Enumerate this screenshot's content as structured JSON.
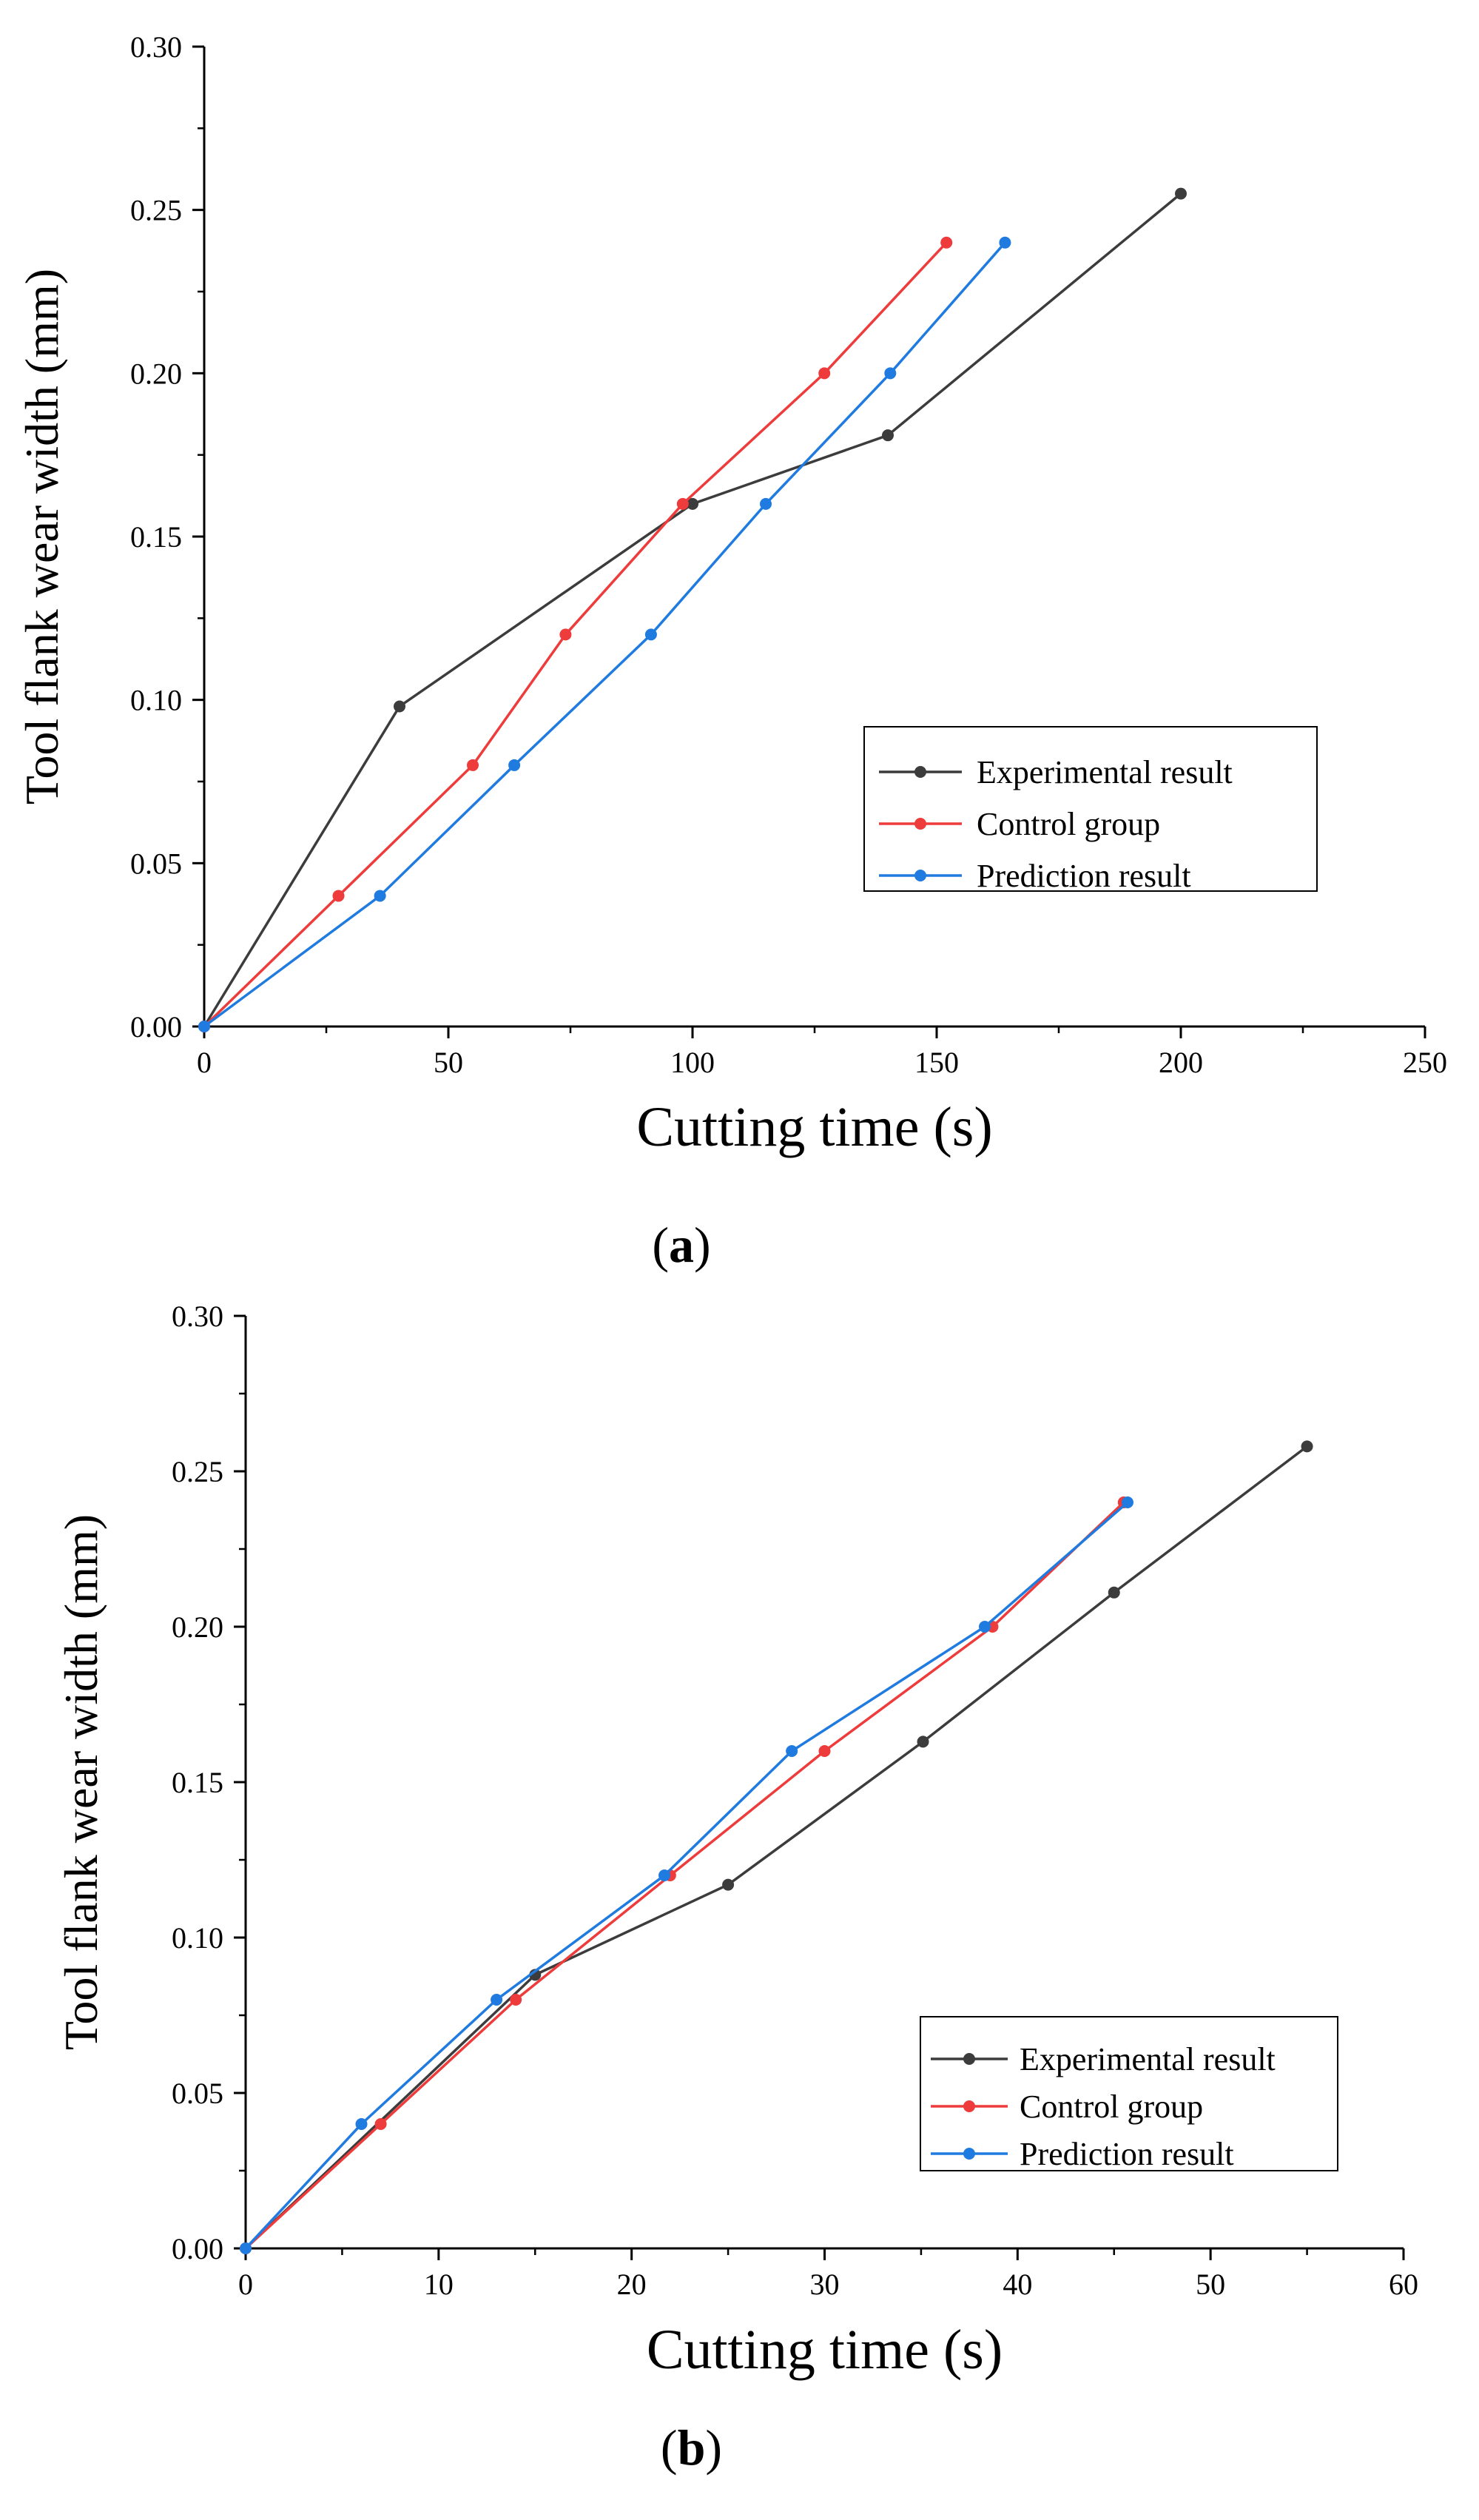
{
  "chart_data": [
    {
      "type": "line",
      "panel": "(a)",
      "caption_letter": "a",
      "xlabel": "Cutting time (s)",
      "ylabel": "Tool flank wear width (mm)",
      "xlim": [
        0,
        250
      ],
      "ylim": [
        0,
        0.3
      ],
      "xticks": [
        "0",
        "50",
        "100",
        "150",
        "200",
        "250"
      ],
      "yticks": [
        "0.00",
        "0.05",
        "0.10",
        "0.15",
        "0.20",
        "0.25",
        "0.30"
      ],
      "legend_position": "lower-right",
      "series": [
        {
          "name": "Experimental result",
          "color": "#3c3c3c",
          "x": [
            0,
            40,
            100,
            140,
            200
          ],
          "y": [
            0,
            0.098,
            0.16,
            0.181,
            0.255
          ]
        },
        {
          "name": "Control group",
          "color": "#ee3b3b",
          "x": [
            0,
            27.5,
            55,
            74,
            98,
            127,
            152
          ],
          "y": [
            0,
            0.04,
            0.08,
            0.12,
            0.16,
            0.2,
            0.24
          ]
        },
        {
          "name": "Prediction result",
          "color": "#1f7be0",
          "x": [
            0,
            36,
            63.5,
            91.5,
            115,
            140.5,
            164
          ],
          "y": [
            0,
            0.04,
            0.08,
            0.12,
            0.16,
            0.2,
            0.24
          ]
        }
      ]
    },
    {
      "type": "line",
      "panel": "(b)",
      "caption_letter": "b",
      "xlabel": "Cutting time (s)",
      "ylabel": "Tool flank wear width (mm)",
      "xlim": [
        0,
        60
      ],
      "ylim": [
        0,
        0.3
      ],
      "xticks": [
        "0",
        "10",
        "20",
        "30",
        "40",
        "50",
        "60"
      ],
      "yticks": [
        "0.00",
        "0.05",
        "0.10",
        "0.15",
        "0.20",
        "0.25",
        "0.30"
      ],
      "legend_position": "lower-right",
      "series": [
        {
          "name": "Experimental result",
          "color": "#3c3c3c",
          "x": [
            0,
            15,
            25,
            35.1,
            45,
            55
          ],
          "y": [
            0,
            0.088,
            0.117,
            0.163,
            0.211,
            0.258
          ]
        },
        {
          "name": "Control group",
          "color": "#ee3b3b",
          "x": [
            0,
            7,
            14,
            22,
            30,
            38.7,
            45.5
          ],
          "y": [
            0,
            0.04,
            0.08,
            0.12,
            0.16,
            0.2,
            0.24
          ]
        },
        {
          "name": "Prediction result",
          "color": "#1f7be0",
          "x": [
            0,
            6,
            13,
            21.7,
            28.3,
            38.3,
            45.7
          ],
          "y": [
            0,
            0.04,
            0.08,
            0.12,
            0.16,
            0.2,
            0.24
          ]
        }
      ]
    }
  ]
}
